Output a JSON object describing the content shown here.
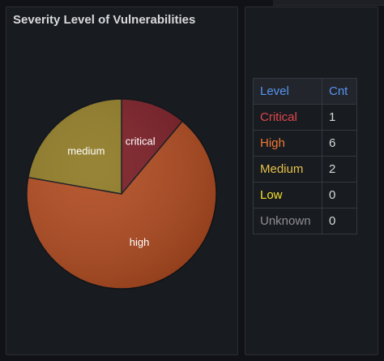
{
  "panel": {
    "title": "Severity Level of Vulnerabilities"
  },
  "chart_data": {
    "type": "pie",
    "slices": [
      {
        "label": "critical",
        "value": 1,
        "color": "#7a1c24"
      },
      {
        "label": "high",
        "value": 6,
        "color": "#b04a1f"
      },
      {
        "label": "medium",
        "value": 2,
        "color": "#8f7a24"
      }
    ]
  },
  "table": {
    "headers": {
      "level": "Level",
      "cnt": "Cnt"
    },
    "rows": [
      {
        "level": "Critical",
        "cnt": "1",
        "color": "#e0474e"
      },
      {
        "level": "High",
        "cnt": "6",
        "color": "#f07a37"
      },
      {
        "level": "Medium",
        "cnt": "2",
        "color": "#e6c24a"
      },
      {
        "level": "Low",
        "cnt": "0",
        "color": "#f5e02d"
      },
      {
        "level": "Unknown",
        "cnt": "0",
        "color": "#8e8e93"
      }
    ]
  }
}
